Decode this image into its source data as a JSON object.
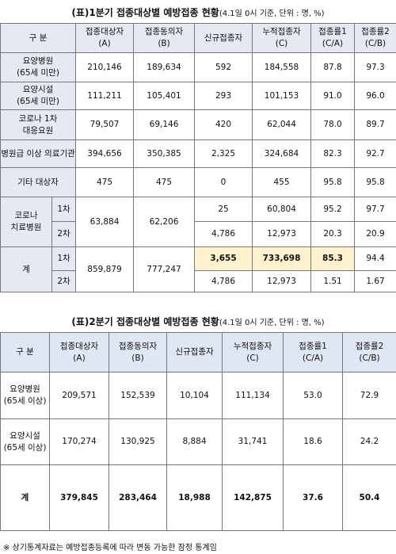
{
  "table1": {
    "title": "(표)1분기 접종대상별 예방접종 현황",
    "note": "(4.1일 0시 기준, 단위 : 명, %)",
    "headers": [
      [
        "구 분"
      ],
      [
        "접종대상자",
        "(A)"
      ],
      [
        "접종동의자",
        "(B)"
      ],
      [
        "신규접종자"
      ],
      [
        "누적접종자",
        "(C)"
      ],
      [
        "접종률1",
        "(C/A)"
      ],
      [
        "접종률2",
        "(C/B)"
      ]
    ],
    "rows": [
      {
        "label": [
          "요양병원",
          "(65세 미만)"
        ],
        "cells": [
          "210,146",
          "189,634",
          "592",
          "184,558",
          "87.8",
          "97.3"
        ]
      },
      {
        "label": [
          "요양시설",
          "(65세 미만)"
        ],
        "cells": [
          "111,211",
          "105,401",
          "293",
          "101,153",
          "91.0",
          "96.0"
        ]
      },
      {
        "label": [
          "코로나 1차",
          "대응요원"
        ],
        "cells": [
          "79,507",
          "69,146",
          "420",
          "62,044",
          "78.0",
          "89.7"
        ]
      },
      {
        "label": [
          "병원급 이상 의료기관"
        ],
        "cells": [
          "394,656",
          "350,385",
          "2,325",
          "324,684",
          "82.3",
          "92.7"
        ]
      },
      {
        "label": [
          "기타 대상자"
        ],
        "cells": [
          "475",
          "475",
          "0",
          "455",
          "95.8",
          "95.8"
        ]
      },
      {
        "label": [
          "코로나",
          "치료병원"
        ],
        "shared": [
          "63,884",
          "62,206"
        ],
        "doses": [
          {
            "dose": "1차",
            "cells": [
              "25",
              "60,804",
              "95.2",
              "97.7"
            ]
          },
          {
            "dose": "2차",
            "cells": [
              "4,786",
              "12,973",
              "20.3",
              "20.9"
            ]
          }
        ]
      },
      {
        "label": [
          "계"
        ],
        "shared": [
          "859,879",
          "777,247"
        ],
        "doses": [
          {
            "dose": "1차",
            "cells": [
              "3,655",
              "733,698",
              "85.3",
              "94.4"
            ]
          },
          {
            "dose": "2차",
            "cells": [
              "4,786",
              "12,973",
              "1.51",
              "1.67"
            ]
          }
        ]
      }
    ]
  },
  "table2": {
    "title": "(표)2분기 접종대상별 예방접종 현황",
    "note": "(4.1일 0시 기준, 단위 : 명, %)",
    "headers": [
      [
        "구 분"
      ],
      [
        "접종대상자",
        "(A)"
      ],
      [
        "접종동의자",
        "(B)"
      ],
      [
        "신규접종자"
      ],
      [
        "누적접종자",
        "(C)"
      ],
      [
        "접종률1",
        "(C/A)"
      ],
      [
        "접종률2",
        "(C/B)"
      ]
    ],
    "rows": [
      {
        "label": [
          "요양병원",
          "(65세 이상)"
        ],
        "cells": [
          "209,571",
          "152,539",
          "10,104",
          "111,134",
          "53.0",
          "72.9"
        ]
      },
      {
        "label": [
          "요양시설",
          "(65세 이상)"
        ],
        "cells": [
          "170,274",
          "130,925",
          "8,884",
          "31,741",
          "18.6",
          "24.2"
        ]
      },
      {
        "label": [
          "계"
        ],
        "cells": [
          "379,845",
          "283,464",
          "18,988",
          "142,875",
          "37.6",
          "50.4"
        ]
      }
    ]
  },
  "footnote": "※ 상기통계자료는 예방접종등록에 따라 변동 가능한 잠정 통계임"
}
